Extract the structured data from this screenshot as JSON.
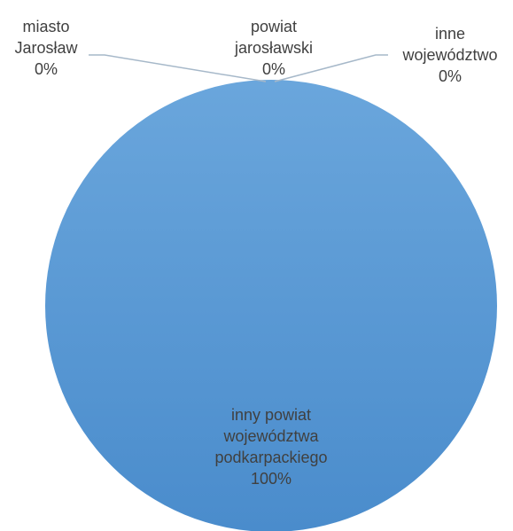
{
  "chart_data": {
    "type": "pie",
    "title": "",
    "slices": [
      {
        "label_lines": [
          "miasto",
          "Jarosław"
        ],
        "value": 0,
        "value_label": "0%",
        "color": "#5b9bd5"
      },
      {
        "label_lines": [
          "powiat",
          "jarosławski"
        ],
        "value": 0,
        "value_label": "0%",
        "color": "#5b9bd5"
      },
      {
        "label_lines": [
          "inne",
          "województwo"
        ],
        "value": 0,
        "value_label": "0%",
        "color": "#5b9bd5"
      },
      {
        "label_lines": [
          "inny powiat",
          "województwa",
          "podkarpackiego"
        ],
        "value": 100,
        "value_label": "100%",
        "color": "#5b9bd5"
      }
    ],
    "leader_line_color": "#a6b8c9",
    "fill_top_color": "#6aa6dc",
    "fill_bottom_color": "#4a8ccc",
    "legend": "none"
  }
}
